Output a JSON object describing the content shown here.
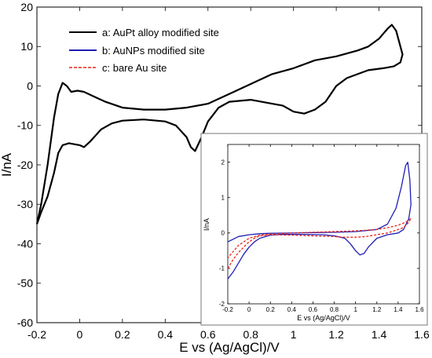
{
  "figure": {
    "main": {
      "xlabel": "E vs (Ag/AgCl)/V",
      "ylabel": "I/nA",
      "xlim": [
        -0.2,
        1.6
      ],
      "ylim": [
        -60,
        20
      ],
      "xticks": [
        "-0.2",
        "0",
        "0.2",
        "0.4",
        "0.6",
        "0.8",
        "1",
        "1.2",
        "1.4",
        "1.6"
      ],
      "yticks": [
        "-60",
        "-50",
        "-40",
        "-30",
        "-20",
        "-10",
        "0",
        "10",
        "20"
      ],
      "legend": [
        {
          "label": "a: AuPt alloy modified site",
          "color": "#000000",
          "dash": "solid"
        },
        {
          "label": "b: AuNPs modified site",
          "color": "#1f1fb4",
          "dash": "solid"
        },
        {
          "label": "c: bare Au site",
          "color": "#e8241a",
          "dash": "dashed"
        }
      ]
    },
    "inset": {
      "xlabel": "E vs (Ag/AgCl)/V",
      "ylabel": "I/nA",
      "xlim": [
        -0.2,
        1.6
      ],
      "ylim": [
        -2,
        2.5
      ],
      "xticks": [
        "-0.2",
        "0",
        "0.2",
        "0.4",
        "0.6",
        "0.8",
        "1",
        "1.2",
        "1.4",
        "1.6"
      ],
      "yticks": [
        "-2",
        "-1",
        "0",
        "1",
        "2"
      ]
    }
  },
  "chart_data": [
    {
      "type": "line",
      "title": "",
      "xlabel": "E vs (Ag/AgCl)/V",
      "ylabel": "I/nA",
      "xlim": [
        -0.2,
        1.6
      ],
      "ylim": [
        -60,
        20
      ],
      "grid": false,
      "legend_position": "top-left",
      "series": [
        {
          "name": "a: AuPt alloy modified site",
          "color": "#000000",
          "points": [
            [
              -0.2,
              -35
            ],
            [
              -0.18,
              -30
            ],
            [
              -0.15,
              -20
            ],
            [
              -0.12,
              -8
            ],
            [
              -0.1,
              -2
            ],
            [
              -0.08,
              0.8
            ],
            [
              -0.06,
              0
            ],
            [
              -0.04,
              -1.5
            ],
            [
              -0.01,
              -1.2
            ],
            [
              0.02,
              -1.5
            ],
            [
              0.06,
              -2.5
            ],
            [
              0.12,
              -4
            ],
            [
              0.2,
              -5.5
            ],
            [
              0.3,
              -6
            ],
            [
              0.4,
              -6
            ],
            [
              0.5,
              -5.5
            ],
            [
              0.6,
              -4.5
            ],
            [
              0.7,
              -2
            ],
            [
              0.8,
              0.5
            ],
            [
              0.9,
              3
            ],
            [
              1.0,
              4.5
            ],
            [
              1.05,
              5.5
            ],
            [
              1.1,
              6.5
            ],
            [
              1.2,
              7.5
            ],
            [
              1.3,
              9
            ],
            [
              1.35,
              10
            ],
            [
              1.4,
              12
            ],
            [
              1.44,
              14.5
            ],
            [
              1.46,
              15.5
            ],
            [
              1.48,
              14
            ],
            [
              1.5,
              10
            ],
            [
              1.51,
              8
            ],
            [
              1.5,
              6
            ],
            [
              1.47,
              5
            ],
            [
              1.42,
              4.5
            ],
            [
              1.35,
              4
            ],
            [
              1.25,
              2
            ],
            [
              1.2,
              0
            ],
            [
              1.15,
              -4
            ],
            [
              1.1,
              -6
            ],
            [
              1.05,
              -7
            ],
            [
              1.0,
              -6.5
            ],
            [
              0.95,
              -5
            ],
            [
              0.9,
              -4.5
            ],
            [
              0.8,
              -3.5
            ],
            [
              0.7,
              -4
            ],
            [
              0.65,
              -5.5
            ],
            [
              0.6,
              -9
            ],
            [
              0.57,
              -13
            ],
            [
              0.54,
              -16.5
            ],
            [
              0.52,
              -15.5
            ],
            [
              0.5,
              -13
            ],
            [
              0.45,
              -10
            ],
            [
              0.4,
              -9
            ],
            [
              0.3,
              -8.5
            ],
            [
              0.2,
              -8.8
            ],
            [
              0.15,
              -9.5
            ],
            [
              0.1,
              -11
            ],
            [
              0.05,
              -14
            ],
            [
              0.02,
              -15.5
            ],
            [
              0.0,
              -15
            ],
            [
              -0.05,
              -14.5
            ],
            [
              -0.08,
              -15
            ],
            [
              -0.1,
              -17
            ],
            [
              -0.12,
              -22
            ],
            [
              -0.15,
              -28
            ],
            [
              -0.18,
              -32
            ],
            [
              -0.2,
              -35
            ]
          ]
        }
      ]
    },
    {
      "type": "line",
      "title": "",
      "xlabel": "E vs (Ag/AgCl)/V",
      "ylabel": "I/nA",
      "xlim": [
        -0.2,
        1.6
      ],
      "ylim": [
        -2,
        2.5
      ],
      "grid": false,
      "series": [
        {
          "name": "b: AuNPs modified site",
          "color": "#1f1fb4",
          "points": [
            [
              -0.2,
              -1.3
            ],
            [
              -0.15,
              -1.1
            ],
            [
              -0.1,
              -0.85
            ],
            [
              -0.05,
              -0.6
            ],
            [
              0.0,
              -0.4
            ],
            [
              0.05,
              -0.25
            ],
            [
              0.1,
              -0.15
            ],
            [
              0.2,
              -0.06
            ],
            [
              0.3,
              -0.04
            ],
            [
              0.5,
              -0.04
            ],
            [
              0.7,
              -0.05
            ],
            [
              0.8,
              -0.08
            ],
            [
              0.9,
              -0.15
            ],
            [
              0.95,
              -0.3
            ],
            [
              1.0,
              -0.5
            ],
            [
              1.04,
              -0.62
            ],
            [
              1.08,
              -0.58
            ],
            [
              1.12,
              -0.4
            ],
            [
              1.2,
              -0.15
            ],
            [
              1.3,
              -0.05
            ],
            [
              1.4,
              0.0
            ],
            [
              1.45,
              0.1
            ],
            [
              1.5,
              0.4
            ],
            [
              1.52,
              0.8
            ],
            [
              1.51,
              1.5
            ],
            [
              1.49,
              2.0
            ],
            [
              1.47,
              1.9
            ],
            [
              1.43,
              1.3
            ],
            [
              1.38,
              0.7
            ],
            [
              1.3,
              0.25
            ],
            [
              1.2,
              0.1
            ],
            [
              1.0,
              0.04
            ],
            [
              0.8,
              0.02
            ],
            [
              0.6,
              0.01
            ],
            [
              0.4,
              0.0
            ],
            [
              0.2,
              -0.01
            ],
            [
              0.1,
              -0.02
            ],
            [
              0.0,
              -0.05
            ],
            [
              -0.1,
              -0.1
            ],
            [
              -0.2,
              -0.25
            ]
          ]
        },
        {
          "name": "c: bare Au site",
          "color": "#e8241a",
          "points": [
            [
              -0.2,
              -1.0
            ],
            [
              -0.15,
              -0.75
            ],
            [
              -0.1,
              -0.55
            ],
            [
              -0.05,
              -0.4
            ],
            [
              0.0,
              -0.25
            ],
            [
              0.05,
              -0.15
            ],
            [
              0.1,
              -0.08
            ],
            [
              0.2,
              -0.05
            ],
            [
              0.4,
              -0.06
            ],
            [
              0.6,
              -0.08
            ],
            [
              0.8,
              -0.1
            ],
            [
              0.9,
              -0.12
            ],
            [
              1.0,
              -0.12
            ],
            [
              1.1,
              -0.1
            ],
            [
              1.2,
              -0.05
            ],
            [
              1.3,
              0.0
            ],
            [
              1.4,
              0.1
            ],
            [
              1.45,
              0.15
            ],
            [
              1.5,
              0.3
            ],
            [
              1.52,
              0.42
            ],
            [
              1.5,
              0.35
            ],
            [
              1.45,
              0.28
            ],
            [
              1.4,
              0.22
            ],
            [
              1.3,
              0.15
            ],
            [
              1.2,
              0.1
            ],
            [
              1.0,
              0.06
            ],
            [
              0.8,
              0.04
            ],
            [
              0.6,
              0.02
            ],
            [
              0.4,
              0.0
            ],
            [
              0.2,
              -0.03
            ],
            [
              0.1,
              -0.06
            ],
            [
              0.0,
              -0.15
            ],
            [
              -0.1,
              -0.35
            ],
            [
              -0.2,
              -0.7
            ]
          ]
        }
      ]
    }
  ]
}
